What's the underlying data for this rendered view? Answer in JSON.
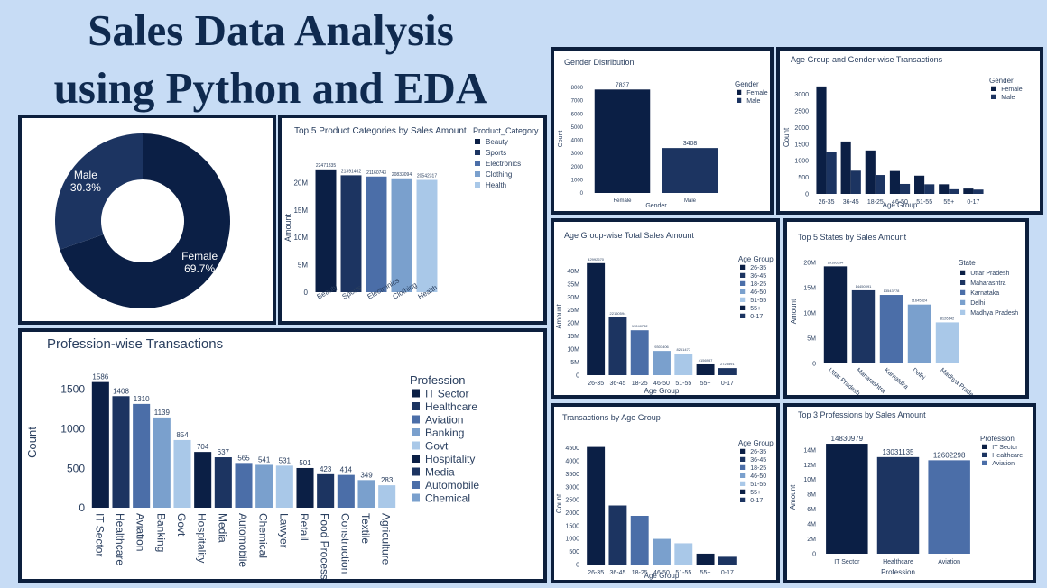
{
  "page": {
    "title_line1": "Sales Data Analysis",
    "title_line2": "using Python and EDA"
  },
  "palette": [
    "#0b1f45",
    "#1c3461",
    "#4b6ea8",
    "#7aa0cd",
    "#a9c8e8"
  ],
  "chart_data": [
    {
      "id": "pie",
      "type": "pie",
      "title": "",
      "labels": [
        "Male",
        "Female"
      ],
      "values": [
        30.3,
        69.7
      ],
      "value_labels": [
        "30.3%",
        "69.7%"
      ],
      "colors": [
        "#1c3461",
        "#0b1f45"
      ],
      "donut": true
    },
    {
      "id": "top5cat",
      "type": "bar",
      "title": "Top 5 Product Categories by Sales Amount",
      "xlabel": "",
      "ylabel": "Amount",
      "legend_title": "Product_Category",
      "legend_position": "right",
      "categories": [
        "Beauty",
        "Sports",
        "Electronics",
        "Clothing",
        "Health"
      ],
      "values": [
        22471835,
        21391462,
        21160743,
        20833094,
        20542317
      ],
      "value_labels": [
        "22471835",
        "21391462",
        "21160743",
        "20833094",
        "20542317"
      ],
      "ylim": [
        0,
        23600000
      ],
      "yticks": [
        0,
        5000000,
        10000000,
        15000000,
        20000000
      ],
      "yticklabels": [
        "0",
        "5M",
        "10M",
        "15M",
        "20M"
      ],
      "grid": false
    },
    {
      "id": "gender",
      "type": "bar",
      "title": "Gender Distribution",
      "xlabel": "Gender",
      "ylabel": "Count",
      "legend_title": "Gender",
      "legend_position": "right",
      "categories": [
        "Female",
        "Male"
      ],
      "values": [
        7837,
        3408
      ],
      "value_labels": [
        "7837",
        "3408"
      ],
      "ylim": [
        0,
        8200
      ],
      "yticks": [
        0,
        1000,
        2000,
        3000,
        4000,
        5000,
        6000,
        7000,
        8000
      ],
      "yticklabels": [
        "0",
        "1000",
        "2000",
        "3000",
        "4000",
        "5000",
        "6000",
        "7000",
        "8000"
      ],
      "grid": false
    },
    {
      "id": "agegender",
      "type": "bar",
      "title": "Age Group and Gender-wise Transactions",
      "xlabel": "Age Group",
      "ylabel": "Count",
      "legend_title": "Gender",
      "legend_position": "right",
      "categories": [
        "26-35",
        "36-45",
        "18-25",
        "46-50",
        "51-55",
        "55+",
        "0-17"
      ],
      "series": [
        {
          "name": "Female",
          "values": [
            3240,
            1580,
            1310,
            690,
            550,
            290,
            160
          ]
        },
        {
          "name": "Male",
          "values": [
            1270,
            700,
            570,
            300,
            290,
            140,
            130
          ]
        }
      ],
      "ylim": [
        0,
        3400
      ],
      "yticks": [
        0,
        500,
        1000,
        1500,
        2000,
        2500,
        3000
      ],
      "yticklabels": [
        "0",
        "500",
        "1000",
        "1500",
        "2000",
        "2500",
        "3000"
      ],
      "grid": false
    },
    {
      "id": "agesales",
      "type": "bar",
      "title": "Age Group-wise Total Sales Amount",
      "xlabel": "Age Group",
      "ylabel": "Amount",
      "legend_title": "Age Group",
      "legend_position": "right",
      "categories": [
        "26-35",
        "36-45",
        "18-25",
        "46-50",
        "51-55",
        "55+",
        "0-17"
      ],
      "values": [
        42992670,
        22160594,
        17240732,
        9303406,
        8261477,
        4156987,
        2728591
      ],
      "value_labels": [
        "42992670",
        "22160594",
        "17240732",
        "9303406",
        "8261477",
        "4156987",
        "2728591"
      ],
      "ylim": [
        0,
        45000000
      ],
      "yticks": [
        0,
        5000000,
        10000000,
        15000000,
        20000000,
        25000000,
        30000000,
        35000000,
        40000000
      ],
      "yticklabels": [
        "0",
        "5M",
        "10M",
        "15M",
        "20M",
        "25M",
        "30M",
        "35M",
        "40M"
      ],
      "grid": false
    },
    {
      "id": "states",
      "type": "bar",
      "title": "Top 5 States by Sales Amount",
      "xlabel": "",
      "ylabel": "Amount",
      "legend_title": "State",
      "legend_position": "right",
      "categories": [
        "Uttar Pradesh",
        "Maharashtra",
        "Karnataka",
        "Delhi",
        "Madhya Pradesh"
      ],
      "values": [
        19186394,
        14450091,
        13543778,
        11645324,
        8126142
      ],
      "value_labels": [
        "19186394",
        "14450091",
        "13543778",
        "11645324",
        "8126142"
      ],
      "ylim": [
        0,
        20500000
      ],
      "yticks": [
        0,
        5000000,
        10000000,
        15000000,
        20000000
      ],
      "yticklabels": [
        "0",
        "5M",
        "10M",
        "15M",
        "20M"
      ],
      "grid": false
    },
    {
      "id": "profession",
      "type": "bar",
      "title": "Profession-wise Transactions",
      "xlabel": "",
      "ylabel": "Count",
      "legend_title": "Profession",
      "legend_position": "right",
      "categories": [
        "IT Sector",
        "Healthcare",
        "Aviation",
        "Banking",
        "Govt",
        "Hospitality",
        "Media",
        "Automobile",
        "Chemical",
        "Lawyer",
        "Retail",
        "Food Processing",
        "Construction",
        "Textile",
        "Agriculture"
      ],
      "values": [
        1586,
        1408,
        1310,
        1139,
        854,
        704,
        637,
        565,
        541,
        531,
        501,
        423,
        414,
        349,
        283
      ],
      "value_labels": [
        "1586",
        "1408",
        "1310",
        "1139",
        "854",
        "704",
        "637",
        "565",
        "541",
        "531",
        "501",
        "423",
        "414",
        "349",
        "283"
      ],
      "legend_entries": [
        "IT Sector",
        "Healthcare",
        "Aviation",
        "Banking",
        "Govt",
        "Hospitality",
        "Media",
        "Automobile",
        "Chemical"
      ],
      "ylim": [
        0,
        1650
      ],
      "yticks": [
        0,
        500,
        1000,
        1500
      ],
      "yticklabels": [
        "0",
        "500",
        "1000",
        "1500"
      ],
      "grid": false
    },
    {
      "id": "agetxn",
      "type": "bar",
      "title": "Transactions by Age Group",
      "xlabel": "Age Group",
      "ylabel": "Count",
      "legend_title": "Age Group",
      "legend_position": "right",
      "categories": [
        "26-35",
        "36-45",
        "18-25",
        "46-50",
        "51-55",
        "55+",
        "0-17"
      ],
      "values": [
        4540,
        2280,
        1880,
        990,
        820,
        420,
        300
      ],
      "ylim": [
        0,
        4700
      ],
      "yticks": [
        0,
        500,
        1000,
        1500,
        2000,
        2500,
        3000,
        3500,
        4000,
        4500
      ],
      "yticklabels": [
        "0",
        "500",
        "1000",
        "1500",
        "2000",
        "2500",
        "3000",
        "3500",
        "4000",
        "4500"
      ],
      "grid": false
    },
    {
      "id": "top3prof",
      "type": "bar",
      "title": "Top 3 Professions by Sales Amount",
      "xlabel": "Profession",
      "ylabel": "Amount",
      "legend_title": "Profession",
      "legend_position": "right",
      "categories": [
        "IT Sector",
        "Healthcare",
        "Aviation"
      ],
      "values": [
        14830979,
        13031135,
        12602298
      ],
      "value_labels": [
        "14830979",
        "13031135",
        "12602298"
      ],
      "ylim": [
        0,
        15200000
      ],
      "yticks": [
        0,
        2000000,
        4000000,
        6000000,
        8000000,
        10000000,
        12000000,
        14000000
      ],
      "yticklabels": [
        "0",
        "2M",
        "4M",
        "6M",
        "8M",
        "10M",
        "12M",
        "14M"
      ],
      "grid": false
    }
  ]
}
